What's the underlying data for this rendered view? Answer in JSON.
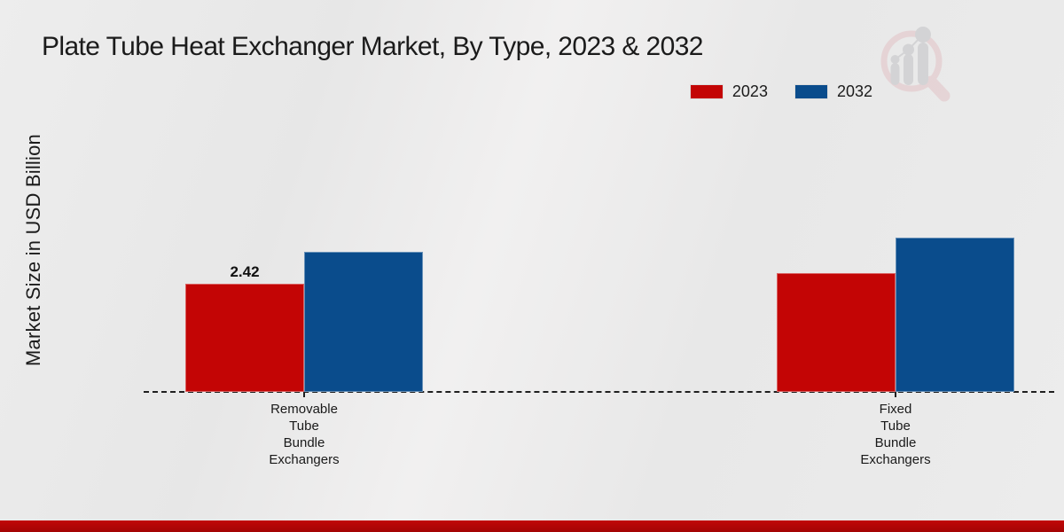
{
  "title": "Plate Tube Heat Exchanger Market, By Type, 2023 & 2032",
  "ylabel": "Market Size in USD Billion",
  "legend": {
    "items": [
      {
        "label": "2023",
        "color": "#c30505"
      },
      {
        "label": "2032",
        "color": "#0a4c8c"
      }
    ]
  },
  "logo": {
    "name": "magnifier-bar-chart-logo",
    "ring_color": "#e3c6c9",
    "glyph_color": "#c6c6c8"
  },
  "footer": {
    "accent_color": "#b50707"
  },
  "chart_data": {
    "type": "bar",
    "title": "Plate Tube Heat Exchanger Market, By Type, 2023 & 2032",
    "xlabel": "",
    "ylabel": "Market Size in USD Billion",
    "categories": [
      "Removable Tube Bundle Exchangers",
      "Fixed Tube Bundle Exchangers"
    ],
    "series": [
      {
        "name": "2023",
        "color": "#c30505",
        "values": [
          2.42,
          2.66
        ],
        "data_labels": [
          "2.42",
          ""
        ]
      },
      {
        "name": "2032",
        "color": "#0a4c8c",
        "values": [
          3.13,
          3.45
        ],
        "data_labels": [
          "",
          ""
        ]
      }
    ],
    "ylim": [
      0,
      3.9
    ],
    "grid": false,
    "legend_position": "top-right",
    "x_axis_line_style": "dashed",
    "y_axis_ticks_visible": false
  }
}
